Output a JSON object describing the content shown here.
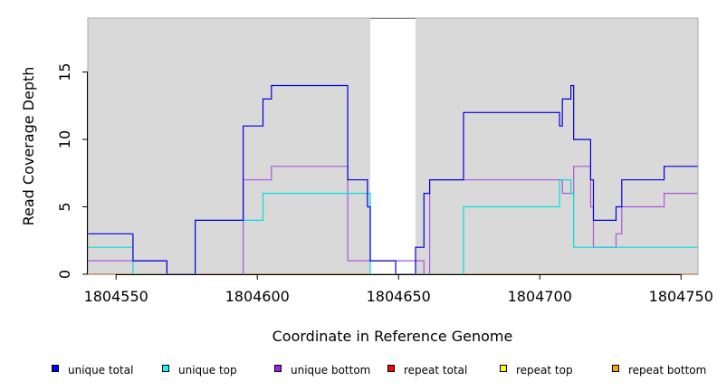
{
  "chart_data": {
    "type": "line",
    "title": "",
    "xlabel": "Coordinate in Reference Genome",
    "ylabel": "Read Coverage Depth",
    "xlim": [
      1804540,
      1804756
    ],
    "ylim": [
      0,
      19
    ],
    "x_ticks": [
      1804550,
      1804600,
      1804650,
      1804700,
      1804750
    ],
    "x_tick_labels": [
      "1804550",
      "1804600",
      "1804650",
      "1804700",
      "1804750"
    ],
    "y_ticks": [
      0,
      5,
      10,
      15
    ],
    "y_tick_labels": [
      "0",
      "5",
      "10",
      "15"
    ],
    "gap_region": [
      1804640,
      1804656
    ],
    "grid": false,
    "legend_position": "bottom",
    "series": [
      {
        "name": "unique total",
        "color": "#0000dd",
        "x": [
          1804540,
          1804556,
          1804568,
          1804578,
          1804595,
          1804602,
          1804605,
          1804632,
          1804639,
          1804640,
          1804649,
          1804656,
          1804659,
          1804661,
          1804673,
          1804707,
          1804708,
          1804711,
          1804712,
          1804718,
          1804719,
          1804727,
          1804729,
          1804744,
          1804756
        ],
        "y": [
          3,
          1,
          0,
          4,
          11,
          13,
          14,
          7,
          5,
          1,
          0,
          2,
          6,
          7,
          12,
          11,
          13,
          14,
          10,
          7,
          4,
          5,
          7,
          8,
          8
        ]
      },
      {
        "name": "unique top",
        "color": "#00dddd",
        "x": [
          1804540,
          1804556,
          1804568,
          1804578,
          1804595,
          1804602,
          1804640,
          1804673,
          1804707,
          1804711,
          1804712,
          1804719,
          1804756
        ],
        "y": [
          2,
          0,
          0,
          4,
          4,
          6,
          0,
          5,
          7,
          6,
          2,
          2,
          2
        ]
      },
      {
        "name": "unique bottom",
        "color": "#aa55dd",
        "x": [
          1804540,
          1804556,
          1804568,
          1804595,
          1804605,
          1804632,
          1804640,
          1804659,
          1804661,
          1804707,
          1804708,
          1804712,
          1804718,
          1804719,
          1804727,
          1804729,
          1804744,
          1804756
        ],
        "y": [
          1,
          1,
          0,
          7,
          8,
          1,
          1,
          0,
          7,
          7,
          6,
          8,
          5,
          2,
          3,
          5,
          6,
          6
        ]
      },
      {
        "name": "repeat total",
        "color": "#dd0000",
        "x": [
          1804540,
          1804756
        ],
        "y": [
          0,
          0
        ]
      },
      {
        "name": "repeat top",
        "color": "#dddd00",
        "x": [
          1804540,
          1804756
        ],
        "y": [
          0,
          0
        ]
      },
      {
        "name": "repeat bottom",
        "color": "#ee9900",
        "x": [
          1804540,
          1804756
        ],
        "y": [
          0,
          0
        ]
      }
    ],
    "legend": [
      {
        "label": "unique total",
        "fill": "#0000ff"
      },
      {
        "label": "unique top",
        "fill": "#00ffff"
      },
      {
        "label": "unique bottom",
        "fill": "#a020f0"
      },
      {
        "label": "repeat total",
        "fill": "#ff0000"
      },
      {
        "label": "repeat top",
        "fill": "#ffff00"
      },
      {
        "label": "repeat bottom",
        "fill": "#ffa500"
      }
    ]
  }
}
